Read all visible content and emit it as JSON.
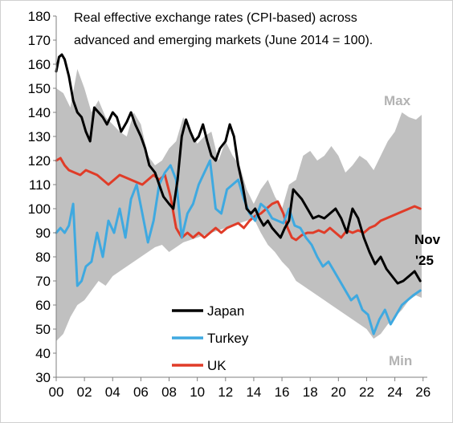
{
  "chart_data": {
    "type": "line",
    "title_lines": [
      "Real effective exchange rates (CPI-based) across",
      "advanced and emerging markets (June 2014 = 100)."
    ],
    "xlabel": "",
    "ylabel": "",
    "xlim": [
      2000,
      2026.3
    ],
    "ylim": [
      30,
      180
    ],
    "x_tick_values": [
      2000,
      2002,
      2004,
      2006,
      2008,
      2010,
      2012,
      2014,
      2016,
      2018,
      2020,
      2022,
      2024,
      2026
    ],
    "x_tick_labels": [
      "00",
      "02",
      "04",
      "06",
      "08",
      "10",
      "12",
      "14",
      "16",
      "18",
      "20",
      "22",
      "24",
      "26"
    ],
    "y_ticks": [
      30,
      40,
      50,
      60,
      70,
      80,
      90,
      100,
      110,
      120,
      130,
      140,
      150,
      160,
      170,
      180
    ],
    "grid": false,
    "legend_position": "bottom-left",
    "colors": {
      "band": "#c0c0c0",
      "japan": "#000000",
      "turkey": "#3fa9e0",
      "uk": "#e03c28",
      "band_label": "#b3b3b3"
    },
    "band": {
      "label_max": "Max",
      "label_min": "Min",
      "x": [
        2000,
        2000.5,
        2001,
        2001.5,
        2002,
        2002.5,
        2003,
        2003.5,
        2004,
        2004.5,
        2005,
        2005.5,
        2006,
        2006.5,
        2007,
        2007.5,
        2008,
        2008.5,
        2009,
        2009.5,
        2010,
        2010.5,
        2011,
        2011.5,
        2012,
        2012.5,
        2013,
        2013.5,
        2014,
        2014.5,
        2015,
        2015.5,
        2016,
        2016.5,
        2017,
        2017.5,
        2018,
        2018.5,
        2019,
        2019.5,
        2020,
        2020.5,
        2021,
        2021.5,
        2022,
        2022.5,
        2023,
        2023.5,
        2024,
        2024.5,
        2025,
        2025.5,
        2025.9
      ],
      "upper": [
        150,
        148,
        142,
        158,
        150,
        140,
        145,
        138,
        135,
        132,
        130,
        140,
        135,
        122,
        118,
        120,
        125,
        128,
        138,
        132,
        127,
        130,
        132,
        120,
        128,
        122,
        118,
        108,
        102,
        108,
        112,
        105,
        100,
        110,
        112,
        122,
        124,
        120,
        122,
        126,
        122,
        115,
        118,
        122,
        120,
        116,
        122,
        128,
        132,
        140,
        138,
        137,
        139
      ],
      "lower": [
        45,
        48,
        55,
        60,
        62,
        66,
        70,
        68,
        72,
        74,
        76,
        78,
        80,
        82,
        84,
        85,
        82,
        84,
        86,
        87,
        88,
        89,
        90,
        91,
        92,
        93,
        94,
        95,
        96,
        90,
        85,
        82,
        78,
        75,
        70,
        68,
        66,
        64,
        62,
        60,
        58,
        56,
        54,
        52,
        50,
        46,
        48,
        52,
        55,
        58,
        62,
        64,
        63
      ]
    },
    "series": [
      {
        "name": "Japan",
        "x": [
          2000,
          2000.2,
          2000.4,
          2000.6,
          2000.9,
          2001.2,
          2001.5,
          2001.8,
          2002.1,
          2002.4,
          2002.7,
          2003.0,
          2003.3,
          2003.6,
          2004.0,
          2004.3,
          2004.6,
          2005.0,
          2005.3,
          2005.6,
          2006.0,
          2006.3,
          2006.6,
          2007.0,
          2007.3,
          2007.6,
          2008.0,
          2008.3,
          2008.6,
          2008.9,
          2009.2,
          2009.5,
          2009.8,
          2010.1,
          2010.4,
          2010.7,
          2011.0,
          2011.3,
          2011.6,
          2012.0,
          2012.3,
          2012.6,
          2012.9,
          2013.2,
          2013.5,
          2013.8,
          2014.1,
          2014.4,
          2014.7,
          2015.0,
          2015.3,
          2015.6,
          2015.9,
          2016.2,
          2016.5,
          2016.8,
          2017.1,
          2017.4,
          2017.8,
          2018.2,
          2018.6,
          2019.0,
          2019.4,
          2019.8,
          2020.2,
          2020.6,
          2021.0,
          2021.4,
          2021.8,
          2022.2,
          2022.6,
          2023.0,
          2023.4,
          2023.8,
          2024.2,
          2024.6,
          2025.0,
          2025.4,
          2025.8
        ],
        "values": [
          157,
          163,
          164,
          162,
          155,
          145,
          140,
          138,
          132,
          128,
          142,
          140,
          138,
          135,
          140,
          138,
          132,
          136,
          140,
          135,
          130,
          125,
          118,
          115,
          110,
          105,
          102,
          100,
          112,
          130,
          137,
          132,
          128,
          130,
          135,
          128,
          122,
          120,
          125,
          128,
          135,
          130,
          118,
          110,
          100,
          98,
          100,
          96,
          93,
          95,
          92,
          90,
          88,
          92,
          95,
          108,
          106,
          104,
          100,
          96,
          97,
          96,
          98,
          100,
          96,
          90,
          100,
          96,
          88,
          82,
          77,
          80,
          75,
          72,
          69,
          70,
          72,
          74,
          70
        ]
      },
      {
        "name": "Turkey",
        "x": [
          2000,
          2000.3,
          2000.6,
          2000.9,
          2001.2,
          2001.5,
          2001.8,
          2002.1,
          2002.5,
          2002.9,
          2003.3,
          2003.7,
          2004.1,
          2004.5,
          2004.9,
          2005.3,
          2005.7,
          2006.1,
          2006.5,
          2006.9,
          2007.3,
          2007.7,
          2008.1,
          2008.5,
          2008.9,
          2009.3,
          2009.7,
          2010.1,
          2010.5,
          2010.9,
          2011.3,
          2011.7,
          2012.1,
          2012.5,
          2012.9,
          2013.3,
          2013.7,
          2014.1,
          2014.5,
          2014.9,
          2015.3,
          2015.7,
          2016.1,
          2016.5,
          2016.9,
          2017.3,
          2017.7,
          2018.1,
          2018.5,
          2018.9,
          2019.3,
          2019.7,
          2020.1,
          2020.5,
          2020.9,
          2021.3,
          2021.7,
          2022.1,
          2022.5,
          2022.9,
          2023.3,
          2023.7,
          2024.1,
          2024.5,
          2024.9,
          2025.3,
          2025.8
        ],
        "values": [
          90,
          92,
          90,
          93,
          102,
          68,
          70,
          76,
          78,
          90,
          80,
          95,
          90,
          100,
          88,
          104,
          110,
          98,
          86,
          95,
          110,
          115,
          118,
          112,
          88,
          98,
          102,
          110,
          115,
          120,
          100,
          98,
          108,
          110,
          112,
          104,
          98,
          95,
          102,
          100,
          96,
          95,
          94,
          100,
          93,
          92,
          88,
          85,
          80,
          76,
          78,
          74,
          70,
          66,
          62,
          64,
          58,
          56,
          48,
          54,
          58,
          52,
          56,
          60,
          62,
          64,
          66
        ]
      },
      {
        "name": "UK",
        "x": [
          2000,
          2000.3,
          2000.6,
          2000.9,
          2001.3,
          2001.7,
          2002.1,
          2002.5,
          2002.9,
          2003.3,
          2003.7,
          2004.1,
          2004.5,
          2004.9,
          2005.3,
          2005.7,
          2006.1,
          2006.5,
          2006.9,
          2007.3,
          2007.7,
          2008.1,
          2008.5,
          2008.9,
          2009.3,
          2009.7,
          2010.1,
          2010.5,
          2010.9,
          2011.3,
          2011.7,
          2012.1,
          2012.5,
          2012.9,
          2013.3,
          2013.7,
          2014.1,
          2014.5,
          2014.9,
          2015.3,
          2015.7,
          2016.1,
          2016.4,
          2016.7,
          2017.0,
          2017.4,
          2017.8,
          2018.2,
          2018.6,
          2019.0,
          2019.4,
          2019.8,
          2020.2,
          2020.6,
          2021.0,
          2021.4,
          2021.8,
          2022.2,
          2022.6,
          2023.0,
          2023.4,
          2023.8,
          2024.2,
          2024.6,
          2025.0,
          2025.4,
          2025.8
        ],
        "values": [
          120,
          121,
          118,
          116,
          115,
          114,
          116,
          115,
          114,
          112,
          110,
          112,
          114,
          113,
          112,
          111,
          110,
          112,
          114,
          112,
          114,
          105,
          92,
          88,
          90,
          88,
          90,
          88,
          90,
          92,
          90,
          92,
          93,
          94,
          92,
          95,
          97,
          98,
          100,
          102,
          103,
          98,
          92,
          88,
          87,
          89,
          90,
          90,
          91,
          90,
          92,
          90,
          88,
          91,
          90,
          91,
          90,
          92,
          93,
          95,
          96,
          97,
          98,
          99,
          100,
          101,
          100
        ]
      }
    ],
    "legend": [
      {
        "label": "Japan",
        "color": "#000000"
      },
      {
        "label": "Turkey",
        "color": "#3fa9e0"
      },
      {
        "label": "UK",
        "color": "#e03c28"
      }
    ],
    "annotation": {
      "lines": [
        "Nov",
        "'25"
      ]
    }
  }
}
